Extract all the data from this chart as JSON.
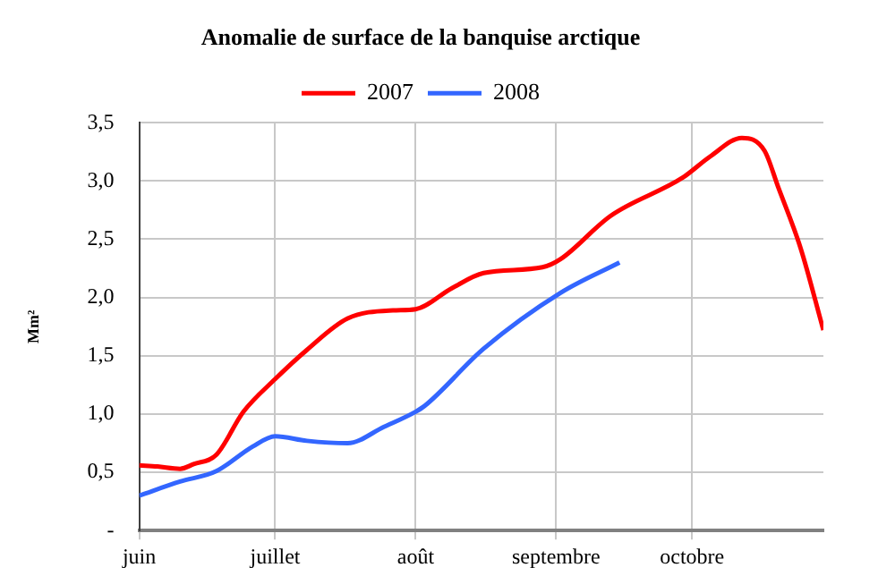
{
  "chart_data": {
    "type": "line",
    "title": "Anomalie de surface de la banquise arctique",
    "ylabel": "Mm²",
    "xlim": [
      "--06-01",
      "--10-30"
    ],
    "xticks": [
      {
        "value": "--06-01",
        "label": "juin"
      },
      {
        "value": "--07-01",
        "label": "juillet"
      },
      {
        "value": "--08-01",
        "label": "août"
      },
      {
        "value": "--09-01",
        "label": "septembre"
      },
      {
        "value": "--10-01",
        "label": "octobre"
      }
    ],
    "ylim": [
      0,
      3.5
    ],
    "yticks": [
      {
        "value": 0,
        "label": "-"
      },
      {
        "value": 0.5,
        "label": "0,5"
      },
      {
        "value": 1,
        "label": "1,0"
      },
      {
        "value": 1.5,
        "label": "1,5"
      },
      {
        "value": 2,
        "label": "2,0"
      },
      {
        "value": 2.5,
        "label": "2,5"
      },
      {
        "value": 3,
        "label": "3,0"
      },
      {
        "value": 3.5,
        "label": "3,5"
      }
    ],
    "grid": true,
    "legend": "top",
    "marker": "none",
    "line_style": "solid",
    "series": [
      {
        "name": "2007",
        "color": "#ff0000",
        "x": [
          "--06-01",
          "--06-05",
          "--06-10",
          "--06-13",
          "--06-18",
          "--06-24",
          "--07-01",
          "--07-08",
          "--07-17",
          "--07-27",
          "--08-01",
          "--08-09",
          "--08-16",
          "--08-29",
          "--09-02",
          "--09-13",
          "--09-29",
          "--10-05",
          "--10-12",
          "--10-17",
          "--10-20",
          "--10-25",
          "--10-30"
        ],
        "values": [
          0.56,
          0.55,
          0.53,
          0.57,
          0.65,
          1.02,
          1.3,
          1.55,
          1.82,
          1.89,
          1.9,
          2.08,
          2.21,
          2.26,
          2.33,
          2.7,
          3.03,
          3.21,
          3.37,
          3.26,
          2.95,
          2.42,
          1.72
        ]
      },
      {
        "name": "2008",
        "color": "#3366ff",
        "x": [
          "--06-01",
          "--06-10",
          "--06-18",
          "--06-26",
          "--07-01",
          "--07-08",
          "--07-17",
          "--07-25",
          "--08-01",
          "--08-03",
          "--08-16",
          "--09-02",
          "--09-15"
        ],
        "values": [
          0.3,
          0.42,
          0.51,
          0.72,
          0.81,
          0.77,
          0.75,
          0.89,
          1.02,
          1.07,
          1.56,
          2.04,
          2.3
        ]
      }
    ]
  }
}
